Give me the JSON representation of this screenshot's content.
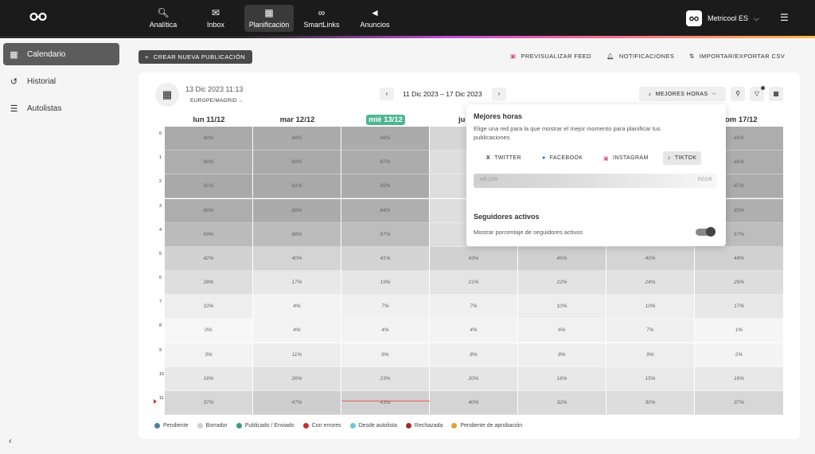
{
  "topnav": {
    "items": [
      {
        "label": "Analítica",
        "icon": "analytics-icon"
      },
      {
        "label": "Inbox",
        "icon": "inbox-icon"
      },
      {
        "label": "Planificación",
        "icon": "calendar-icon"
      },
      {
        "label": "SmartLinks",
        "icon": "link-icon"
      },
      {
        "label": "Anuncios",
        "icon": "megaphone-icon"
      }
    ],
    "account": "Metricool ES"
  },
  "sidebar": {
    "items": [
      {
        "label": "Calendario",
        "icon": "calendar-icon"
      },
      {
        "label": "Historial",
        "icon": "history-icon"
      },
      {
        "label": "Autolistas",
        "icon": "list-icon"
      }
    ]
  },
  "toolbar": {
    "create_label": "CREAR NUEVA PUBLICACIÓN",
    "preview_label": "PREVISUALIZAR FEED",
    "notifications_label": "NOTIFICACIONES",
    "import_export_label": "IMPORTAR/EXPORTAR CSV"
  },
  "calendar": {
    "datetime": "13 Dic 2023 11:13",
    "timezone": "EUROPE/MADRID",
    "range_start": "11 Dic 2023",
    "range_end": "17 Dic 2023",
    "best_hours_label": "MEJORES HORAS",
    "days": [
      "lun 11/12",
      "mar 12/12",
      "mié 13/12",
      "ju",
      "",
      "",
      "om 17/12"
    ],
    "hours": [
      "0",
      "1",
      "2",
      "3",
      "4",
      "5",
      "6",
      "7",
      "8",
      "9",
      "10",
      "11"
    ],
    "values": [
      [
        "90%",
        "88%",
        "88%",
        "",
        "",
        "",
        "86%"
      ],
      [
        "86%",
        "89%",
        "87%",
        "",
        "",
        "",
        "86%"
      ],
      [
        "91%",
        "91%",
        "89%",
        "",
        "",
        "",
        "87%"
      ],
      [
        "86%",
        "88%",
        "84%",
        "",
        "",
        "",
        "83%"
      ],
      [
        "69%",
        "68%",
        "67%",
        "",
        "",
        "",
        "67%"
      ],
      [
        "42%",
        "40%",
        "41%",
        "43%",
        "45%",
        "40%",
        "44%"
      ],
      [
        "28%",
        "17%",
        "19%",
        "21%",
        "22%",
        "24%",
        "29%"
      ],
      [
        "10%",
        "4%",
        "7%",
        "7%",
        "10%",
        "10%",
        "17%"
      ],
      [
        "0%",
        "4%",
        "4%",
        "4%",
        "6%",
        "7%",
        "1%"
      ],
      [
        "3%",
        "11%",
        "6%",
        "8%",
        "8%",
        "9%",
        "2%"
      ],
      [
        "16%",
        "26%",
        "23%",
        "20%",
        "16%",
        "15%",
        "16%"
      ],
      [
        "37%",
        "47%",
        "43%",
        "40%",
        "32%",
        "30%",
        "37%"
      ]
    ]
  },
  "panel": {
    "title": "Mejores horas",
    "description": "Elige una red para la que mostrar el mejor momento para planificar tus publicaciones",
    "networks": [
      {
        "label": "TWITTER",
        "icon": "x-icon"
      },
      {
        "label": "FACEBOOK",
        "icon": "facebook-icon"
      },
      {
        "label": "INSTAGRAM",
        "icon": "instagram-icon"
      },
      {
        "label": "TIKTOK",
        "icon": "tiktok-icon"
      }
    ],
    "best_label": "MEJOR",
    "worst_label": "PEOR",
    "followers_title": "Seguidores activos",
    "followers_desc": "Mostrar porcentaje de seguidores activos",
    "followers_toggle_on": true
  },
  "legend": [
    {
      "label": "Pendiente",
      "color": "#4f7fa0"
    },
    {
      "label": "Borrador",
      "color": "#cfcfcf"
    },
    {
      "label": "Publicado / Enviado",
      "color": "#3c9c7c"
    },
    {
      "label": "Con errores",
      "color": "#c62f2f"
    },
    {
      "label": "Desde autolista",
      "color": "#6cc4d8"
    },
    {
      "label": "Rechazada",
      "color": "#a82c2c"
    },
    {
      "label": "Pendiente de aprobación",
      "color": "#d9a53c"
    }
  ]
}
